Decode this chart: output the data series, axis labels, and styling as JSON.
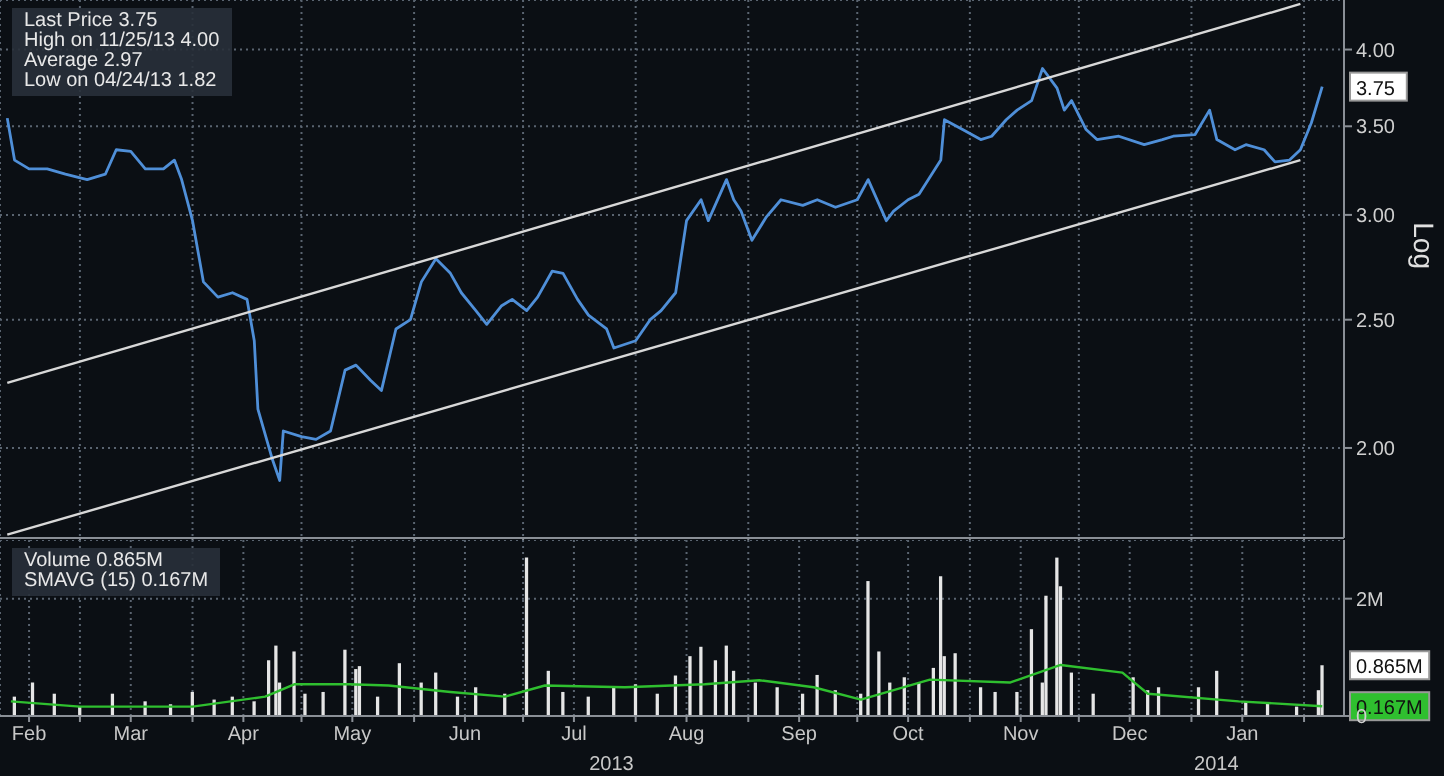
{
  "chart_data": [
    {
      "type": "line",
      "ylabel": "Log",
      "log": "y",
      "grid": true,
      "tick_labels": "y",
      "marker": "none",
      "xlim": [
        "2013-02-07",
        "2014-02-12"
      ],
      "xticks": [
        {
          "value": "2013-03-01",
          "label": null
        },
        {
          "value": "2013-04-01",
          "label": null
        },
        {
          "value": "2013-05-01",
          "label": null
        },
        {
          "value": "2013-06-01",
          "label": null
        },
        {
          "value": "2013-07-01",
          "label": null
        },
        {
          "value": "2013-08-01",
          "label": null
        },
        {
          "value": "2013-09-01",
          "label": null
        },
        {
          "value": "2013-10-01",
          "label": null
        },
        {
          "value": "2013-11-01",
          "label": null
        },
        {
          "value": "2013-12-01",
          "label": null
        },
        {
          "value": "2014-01-01",
          "label": null
        },
        {
          "value": "2014-02-01",
          "label": null
        }
      ],
      "ylim": [
        1.71,
        4.36
      ],
      "yticks": [
        {
          "value": 2,
          "label": "2.00"
        },
        {
          "value": 2.5,
          "label": "2.50"
        },
        {
          "value": 3,
          "label": "3.00"
        },
        {
          "value": 3.5,
          "label": "3.50"
        },
        {
          "value": 4,
          "label": "4.00"
        }
      ],
      "annotations": [
        "Last Price 3.75",
        "High on 11/25/13 4.00",
        "Average 2.97",
        "Low on 04/24/13 1.82",
        {
          "text": "3.75",
          "x": "2014-02-06",
          "y": 3.75
        }
      ],
      "series": [
        {
          "color": "#4f8fd8",
          "x": [
            "2013-02-09",
            "2013-02-11",
            "2013-02-15",
            "2013-02-20",
            "2013-02-25",
            "2013-03-03",
            "2013-03-08",
            "2013-03-11",
            "2013-03-15",
            "2013-03-19",
            "2013-03-24",
            "2013-03-27",
            "2013-03-29",
            "2013-04-01",
            "2013-04-04",
            "2013-04-08",
            "2013-04-12",
            "2013-04-16",
            "2013-04-18",
            "2013-04-19",
            "2013-04-23",
            "2013-04-25",
            "2013-04-26",
            "2013-05-01",
            "2013-05-05",
            "2013-05-09",
            "2013-05-13",
            "2013-05-16",
            "2013-05-20",
            "2013-05-23",
            "2013-05-27",
            "2013-05-31",
            "2013-06-03",
            "2013-06-07",
            "2013-06-11",
            "2013-06-14",
            "2013-06-18",
            "2013-06-21",
            "2013-06-25",
            "2013-06-28",
            "2013-07-02",
            "2013-07-05",
            "2013-07-09",
            "2013-07-12",
            "2013-07-16",
            "2013-07-19",
            "2013-07-24",
            "2013-07-26",
            "2013-08-01",
            "2013-08-05",
            "2013-08-08",
            "2013-08-12",
            "2013-08-15",
            "2013-08-19",
            "2013-08-21",
            "2013-08-26",
            "2013-08-28",
            "2013-08-30",
            "2013-09-02",
            "2013-09-06",
            "2013-09-10",
            "2013-09-16",
            "2013-09-20",
            "2013-09-25",
            "2013-10-01",
            "2013-10-04",
            "2013-10-09",
            "2013-10-11",
            "2013-10-15",
            "2013-10-18",
            "2013-10-24",
            "2013-10-25",
            "2013-10-30",
            "2013-11-04",
            "2013-11-07",
            "2013-11-11",
            "2013-11-14",
            "2013-11-18",
            "2013-11-21",
            "2013-11-25",
            "2013-11-27",
            "2013-11-29",
            "2013-12-03",
            "2013-12-06",
            "2013-12-12",
            "2013-12-19",
            "2013-12-24",
            "2013-12-27",
            "2014-01-02",
            "2014-01-06",
            "2014-01-08",
            "2014-01-13",
            "2014-01-16",
            "2014-01-21",
            "2014-01-24",
            "2014-01-28",
            "2014-01-31",
            "2014-02-03",
            "2014-02-06"
          ],
          "values": [
            3.55,
            3.3,
            3.25,
            3.25,
            3.22,
            3.19,
            3.22,
            3.36,
            3.35,
            3.25,
            3.25,
            3.3,
            3.19,
            2.97,
            2.67,
            2.6,
            2.62,
            2.59,
            2.41,
            2.14,
            1.96,
            1.89,
            2.06,
            2.04,
            2.03,
            2.06,
            2.29,
            2.31,
            2.25,
            2.21,
            2.46,
            2.5,
            2.67,
            2.78,
            2.71,
            2.62,
            2.54,
            2.48,
            2.56,
            2.59,
            2.54,
            2.6,
            2.72,
            2.71,
            2.59,
            2.52,
            2.46,
            2.38,
            2.41,
            2.5,
            2.54,
            2.62,
            2.97,
            3.08,
            2.97,
            3.19,
            3.08,
            3.02,
            2.87,
            2.99,
            3.08,
            3.05,
            3.08,
            3.04,
            3.08,
            3.19,
            2.97,
            3.02,
            3.08,
            3.11,
            3.3,
            3.54,
            3.48,
            3.42,
            3.44,
            3.54,
            3.6,
            3.66,
            3.87,
            3.74,
            3.6,
            3.66,
            3.48,
            3.42,
            3.44,
            3.39,
            3.42,
            3.44,
            3.45,
            3.6,
            3.42,
            3.36,
            3.39,
            3.36,
            3.29,
            3.3,
            3.36,
            3.52,
            3.75
          ]
        },
        {
          "type": "line",
          "color": "#d8d8d8",
          "x": [
            "2013-02-09",
            "2014-01-31"
          ],
          "values": [
            2.24,
            4.33
          ]
        },
        {
          "type": "line",
          "color": "#d8d8d8",
          "x": [
            "2013-02-09",
            "2014-01-31"
          ],
          "values": [
            1.72,
            3.3
          ]
        }
      ]
    },
    {
      "type": "bar",
      "grid": true,
      "marker": "none",
      "xlim": [
        "2013-02-07",
        "2014-02-12"
      ],
      "xticks": [
        {
          "value": "2013-02-15",
          "label": "Feb"
        },
        {
          "value": "2013-03-01",
          "label": null
        },
        {
          "value": "2013-03-15",
          "label": "Mar"
        },
        {
          "value": "2013-04-01",
          "label": null
        },
        {
          "value": "2013-04-15",
          "label": "Apr"
        },
        {
          "value": "2013-05-01",
          "label": null
        },
        {
          "value": "2013-05-15",
          "label": "May"
        },
        {
          "value": "2013-06-01",
          "label": null
        },
        {
          "value": "2013-06-15",
          "label": "Jun"
        },
        {
          "value": "2013-07-01",
          "label": null
        },
        {
          "value": "2013-07-15",
          "label": "Jul"
        },
        {
          "value": "2013-08-01",
          "label": null
        },
        {
          "value": "2013-08-15",
          "label": "Aug"
        },
        {
          "value": "2013-09-01",
          "label": null
        },
        {
          "value": "2013-09-15",
          "label": "Sep"
        },
        {
          "value": "2013-10-01",
          "label": null
        },
        {
          "value": "2013-10-15",
          "label": "Oct"
        },
        {
          "value": "2013-11-01",
          "label": null
        },
        {
          "value": "2013-11-15",
          "label": "Nov"
        },
        {
          "value": "2013-12-01",
          "label": null
        },
        {
          "value": "2013-12-15",
          "label": "Dec"
        },
        {
          "value": "2014-01-01",
          "label": null
        },
        {
          "value": "2014-01-15",
          "label": "Jan"
        },
        {
          "value": "2014-02-01",
          "label": null
        }
      ],
      "ylim": [
        0,
        3
      ],
      "yticks": [
        0,
        {
          "value": 2,
          "label": "2M"
        }
      ],
      "annotations": [
        "Volume 0.865M",
        "SMAVG (15) 0.167M",
        {
          "text": "0.865M",
          "x": "2014-02-06",
          "y": 0.865
        },
        {
          "text": "0.167M",
          "x": "2014-02-06",
          "y": 0.167
        },
        "2013",
        "2014"
      ],
      "series": [
        {
          "color": "#e6e6e6",
          "x": [
            "2013-02-11",
            "2013-02-16",
            "2013-02-22",
            "2013-03-01",
            "2013-03-10",
            "2013-03-19",
            "2013-03-26",
            "2013-04-01",
            "2013-04-07",
            "2013-04-12",
            "2013-04-18",
            "2013-04-22",
            "2013-04-24",
            "2013-04-25",
            "2013-04-29",
            "2013-05-02",
            "2013-05-07",
            "2013-05-13",
            "2013-05-16",
            "2013-05-17",
            "2013-05-22",
            "2013-05-28",
            "2013-06-03",
            "2013-06-07",
            "2013-06-13",
            "2013-06-18",
            "2013-06-26",
            "2013-07-02",
            "2013-07-08",
            "2013-07-12",
            "2013-07-19",
            "2013-07-26",
            "2013-08-01",
            "2013-08-07",
            "2013-08-12",
            "2013-08-16",
            "2013-08-19",
            "2013-08-23",
            "2013-08-26",
            "2013-08-28",
            "2013-09-03",
            "2013-09-09",
            "2013-09-16",
            "2013-09-20",
            "2013-09-25",
            "2013-10-02",
            "2013-10-04",
            "2013-10-07",
            "2013-10-10",
            "2013-10-14",
            "2013-10-18",
            "2013-10-22",
            "2013-10-24",
            "2013-10-25",
            "2013-10-28",
            "2013-11-04",
            "2013-11-08",
            "2013-11-14",
            "2013-11-18",
            "2013-11-21",
            "2013-11-22",
            "2013-11-25",
            "2013-11-26",
            "2013-11-29",
            "2013-12-05",
            "2013-12-16",
            "2013-12-20",
            "2013-12-23",
            "2014-01-03",
            "2014-01-08",
            "2014-01-16",
            "2014-01-22",
            "2014-01-30",
            "2014-02-05",
            "2014-02-06"
          ],
          "values": [
            0.33,
            0.57,
            0.38,
            0.16,
            0.38,
            0.25,
            0.2,
            0.41,
            0.28,
            0.33,
            0.25,
            0.95,
            1.2,
            0.57,
            1.1,
            0.38,
            0.41,
            1.13,
            0.8,
            0.85,
            0.33,
            0.9,
            0.57,
            0.74,
            0.33,
            0.49,
            0.38,
            2.7,
            0.77,
            0.41,
            0.33,
            0.49,
            0.54,
            0.38,
            0.69,
            1.02,
            1.18,
            0.95,
            1.2,
            0.77,
            0.57,
            0.49,
            0.38,
            0.7,
            0.44,
            0.38,
            2.3,
            1.1,
            0.57,
            0.66,
            0.57,
            0.82,
            2.38,
            1.02,
            1.07,
            0.49,
            0.41,
            0.41,
            1.48,
            0.57,
            2.05,
            2.7,
            2.21,
            0.74,
            0.38,
            0.66,
            0.44,
            0.49,
            0.49,
            0.77,
            0.25,
            0.21,
            0.16,
            0.44,
            0.865
          ]
        },
        {
          "type": "line",
          "color": "#2fbf2f",
          "x": [
            "2013-02-10",
            "2013-03-01",
            "2013-04-01",
            "2013-04-21",
            "2013-04-29",
            "2013-05-14",
            "2013-05-25",
            "2013-06-11",
            "2013-06-26",
            "2013-07-07",
            "2013-07-29",
            "2013-08-20",
            "2013-09-04",
            "2013-09-19",
            "2013-10-02",
            "2013-10-21",
            "2013-11-12",
            "2013-11-26",
            "2013-12-13",
            "2013-12-20",
            "2014-01-14",
            "2014-02-06"
          ],
          "values": [
            0.25,
            0.16,
            0.16,
            0.33,
            0.54,
            0.54,
            0.52,
            0.41,
            0.33,
            0.52,
            0.49,
            0.54,
            0.61,
            0.49,
            0.28,
            0.62,
            0.57,
            0.87,
            0.74,
            0.38,
            0.25,
            0.167
          ]
        }
      ]
    }
  ]
}
